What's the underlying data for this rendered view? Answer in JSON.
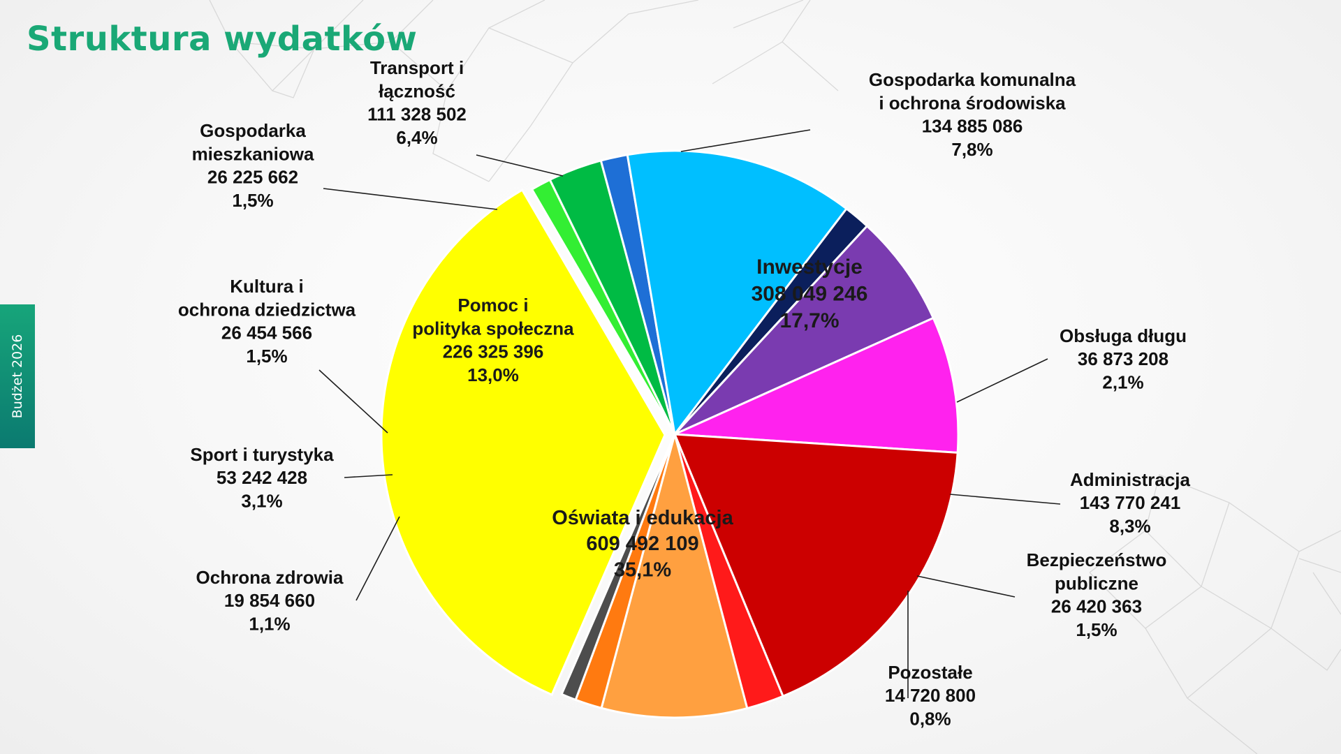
{
  "title": "Struktura wydatków",
  "side_tab": "Budżet 2026",
  "chart_data": {
    "type": "pie",
    "slices": [
      {
        "name": "Oświata i edukacja",
        "value": 609492109,
        "value_label": "609 492 109",
        "percent": "35,1%",
        "color": "#ffff00"
      },
      {
        "name": "Ochrona zdrowia",
        "value": 19854660,
        "value_label": "19 854 660",
        "percent": "1,1%",
        "color": "#33ee33"
      },
      {
        "name": "Sport i turystyka",
        "value": 53242428,
        "value_label": "53 242 428",
        "percent": "3,1%",
        "color": "#00bb44"
      },
      {
        "name": "Kultura i ochrona dziedzictwa",
        "value": 26454566,
        "value_label": "26 454 566",
        "percent": "1,5%",
        "color": "#1e6fd6"
      },
      {
        "name": "Pomoc i polityka społeczna",
        "value": 226325396,
        "value_label": "226 325 396",
        "percent": "13,0%",
        "color": "#00bfff"
      },
      {
        "name": "Gospodarka mieszkaniowa",
        "value": 26225662,
        "value_label": "26 225 662",
        "percent": "1,5%",
        "color": "#0b1f5c"
      },
      {
        "name": "Transport i łączność",
        "value": 111328502,
        "value_label": "111 328 502",
        "percent": "6,4%",
        "color": "#7a3bb0"
      },
      {
        "name": "Gospodarka komunalna i ochrona środowiska",
        "value": 134885086,
        "value_label": "134 885 086",
        "percent": "7,8%",
        "color": "#ff22ee"
      },
      {
        "name": "Inwestycje",
        "value": 308049246,
        "value_label": "308 049 246",
        "percent": "17,7%",
        "color": "#cc0000"
      },
      {
        "name": "Obsługa długu",
        "value": 36873208,
        "value_label": "36 873 208",
        "percent": "2,1%",
        "color": "#ff1a1a"
      },
      {
        "name": "Administracja",
        "value": 143770241,
        "value_label": "143 770 241",
        "percent": "8,3%",
        "color": "#ffa040"
      },
      {
        "name": "Bezpieczeństwo publiczne",
        "value": 26420363,
        "value_label": "26 420 363",
        "percent": "1,5%",
        "color": "#ff7a10"
      },
      {
        "name": "Pozostałe",
        "value": 14720800,
        "value_label": "14 720 800",
        "percent": "0,8%",
        "color": "#4d4d4d"
      }
    ]
  }
}
